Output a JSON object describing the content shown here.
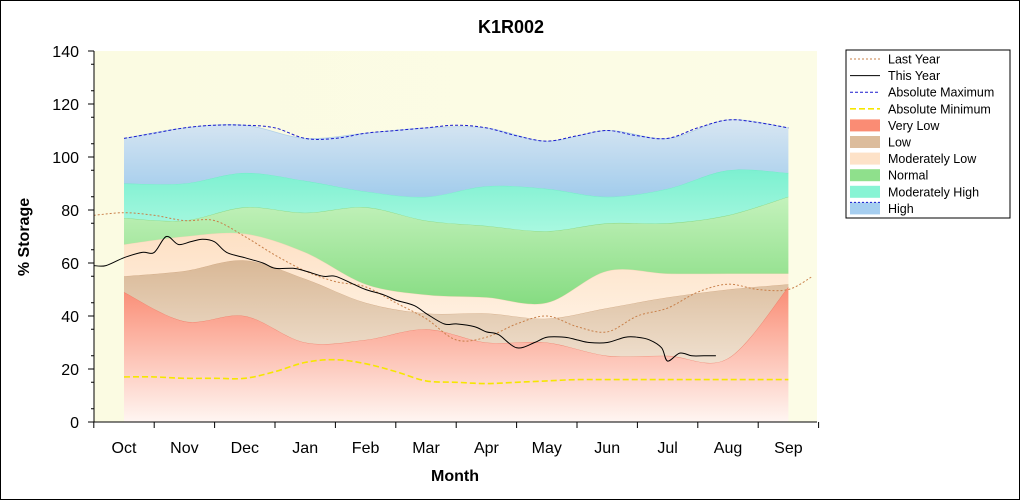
{
  "chart_data": {
    "type": "area",
    "title": "K1R002",
    "xlabel": "Month",
    "ylabel": "% Storage",
    "categories": [
      "Oct",
      "Nov",
      "Dec",
      "Jan",
      "Feb",
      "Mar",
      "Apr",
      "May",
      "Jun",
      "Jul",
      "Aug",
      "Sep"
    ],
    "ylim": [
      0,
      140
    ],
    "yticks": [
      0,
      20,
      40,
      60,
      80,
      100,
      120,
      140
    ],
    "grid": false,
    "legend_position": "right",
    "legend": [
      {
        "key": "last_year",
        "label": "Last Year",
        "style": "line",
        "color": "#c8804a",
        "dash": "2,2"
      },
      {
        "key": "this_year",
        "label": "This Year",
        "style": "line",
        "color": "#000000",
        "dash": ""
      },
      {
        "key": "abs_max",
        "label": "Absolute Maximum",
        "style": "line",
        "color": "#1a1acd",
        "dash": "3,2"
      },
      {
        "key": "abs_min",
        "label": "Absolute Minimum",
        "style": "line",
        "color": "#f5e600",
        "dash": "6,3"
      },
      {
        "key": "very_low",
        "label": "Very Low",
        "style": "fill",
        "color": "#fa8c74"
      },
      {
        "key": "low",
        "label": "Low",
        "style": "fill",
        "color": "#dcbc9c"
      },
      {
        "key": "moderately_low",
        "label": "Moderately Low",
        "style": "fill",
        "color": "#fde2c8"
      },
      {
        "key": "normal",
        "label": "Normal",
        "style": "fill",
        "color": "#8fe08c"
      },
      {
        "key": "moderately_high",
        "label": "Moderately High",
        "style": "fill",
        "color": "#88f4d4"
      },
      {
        "key": "high",
        "label": "High",
        "style": "fill",
        "color": "#a6cef0"
      }
    ],
    "bands": {
      "x": [
        0,
        1,
        2,
        3,
        4,
        5,
        6,
        7,
        8,
        9,
        10,
        11
      ],
      "very_low_top": [
        49,
        38,
        40,
        30,
        31,
        35,
        30,
        30,
        25,
        25,
        24,
        51
      ],
      "low_top": [
        55,
        57,
        61,
        54,
        45,
        41,
        41,
        39,
        43,
        47,
        50,
        52
      ],
      "moderately_low_top": [
        67,
        70,
        71,
        64,
        52,
        48,
        47,
        45,
        57,
        56,
        56,
        56
      ],
      "normal_top": [
        77,
        76,
        81,
        79,
        81,
        76,
        74,
        72,
        75,
        75,
        78,
        85
      ],
      "moderately_high_top": [
        90,
        90,
        94,
        91,
        87,
        85,
        89,
        88,
        85,
        88,
        95,
        94
      ],
      "high_top": [
        107,
        111,
        112,
        107,
        109,
        111,
        111,
        106,
        110,
        107,
        114,
        111
      ]
    },
    "series": [
      {
        "key": "abs_max",
        "name": "Absolute Maximum",
        "x": [
          0,
          0.5,
          1,
          1.5,
          2,
          2.5,
          3,
          3.5,
          4,
          4.5,
          5,
          5.5,
          6,
          6.5,
          7,
          7.5,
          8,
          8.5,
          9,
          9.5,
          10,
          10.5,
          11
        ],
        "values": [
          107,
          109,
          111,
          112,
          112,
          111,
          107,
          107,
          109,
          110,
          111,
          112,
          111,
          108,
          106,
          108,
          110,
          108,
          107,
          111,
          114,
          113,
          111
        ]
      },
      {
        "key": "abs_min",
        "name": "Absolute Minimum",
        "x": [
          0,
          0.5,
          1,
          1.5,
          2,
          2.5,
          3,
          3.5,
          4,
          4.5,
          5,
          5.5,
          6,
          6.5,
          7,
          7.5,
          8,
          8.5,
          9,
          9.5,
          10,
          10.5,
          11
        ],
        "values": [
          17,
          17,
          16.5,
          16.5,
          16.5,
          19,
          22.5,
          23.5,
          22,
          19,
          15.5,
          15,
          14.5,
          15,
          15.5,
          16,
          16,
          16,
          16,
          16,
          16,
          16,
          16
        ]
      },
      {
        "key": "last_year",
        "name": "Last Year",
        "x": [
          -0.5,
          0,
          0.5,
          1,
          1.5,
          2,
          2.5,
          3,
          3.5,
          4,
          4.5,
          5,
          5.5,
          6,
          6.5,
          7,
          7.5,
          8,
          8.5,
          9,
          9.5,
          10,
          10.5,
          11,
          11.4
        ],
        "values": [
          78,
          79,
          78,
          76,
          76,
          70,
          63,
          57,
          53,
          51,
          45,
          39,
          31,
          32,
          37,
          40,
          36,
          34,
          40,
          43,
          49,
          52,
          50,
          50,
          55
        ]
      },
      {
        "key": "this_year",
        "name": "This Year",
        "x": [
          -0.5,
          -0.3,
          0,
          0.3,
          0.5,
          0.7,
          0.9,
          1.1,
          1.3,
          1.5,
          1.7,
          2,
          2.3,
          2.5,
          2.8,
          3,
          3.3,
          3.5,
          3.8,
          4,
          4.3,
          4.5,
          4.8,
          5,
          5.3,
          5.5,
          5.8,
          6,
          6.2,
          6.5,
          6.8,
          7,
          7.3,
          7.5,
          7.7,
          8,
          8.3,
          8.5,
          8.7,
          8.9,
          9,
          9.2,
          9.4,
          9.6,
          9.8
        ],
        "values": [
          59,
          59,
          62,
          64,
          64,
          70,
          67,
          68,
          69,
          68,
          64,
          62,
          60,
          58,
          58,
          57,
          55,
          55,
          52,
          50,
          48,
          46,
          44,
          41,
          37,
          37,
          36,
          34,
          33,
          28,
          30,
          32,
          32,
          31,
          30,
          30,
          32,
          32,
          31,
          28,
          23,
          26,
          25,
          25,
          25
        ]
      }
    ]
  }
}
